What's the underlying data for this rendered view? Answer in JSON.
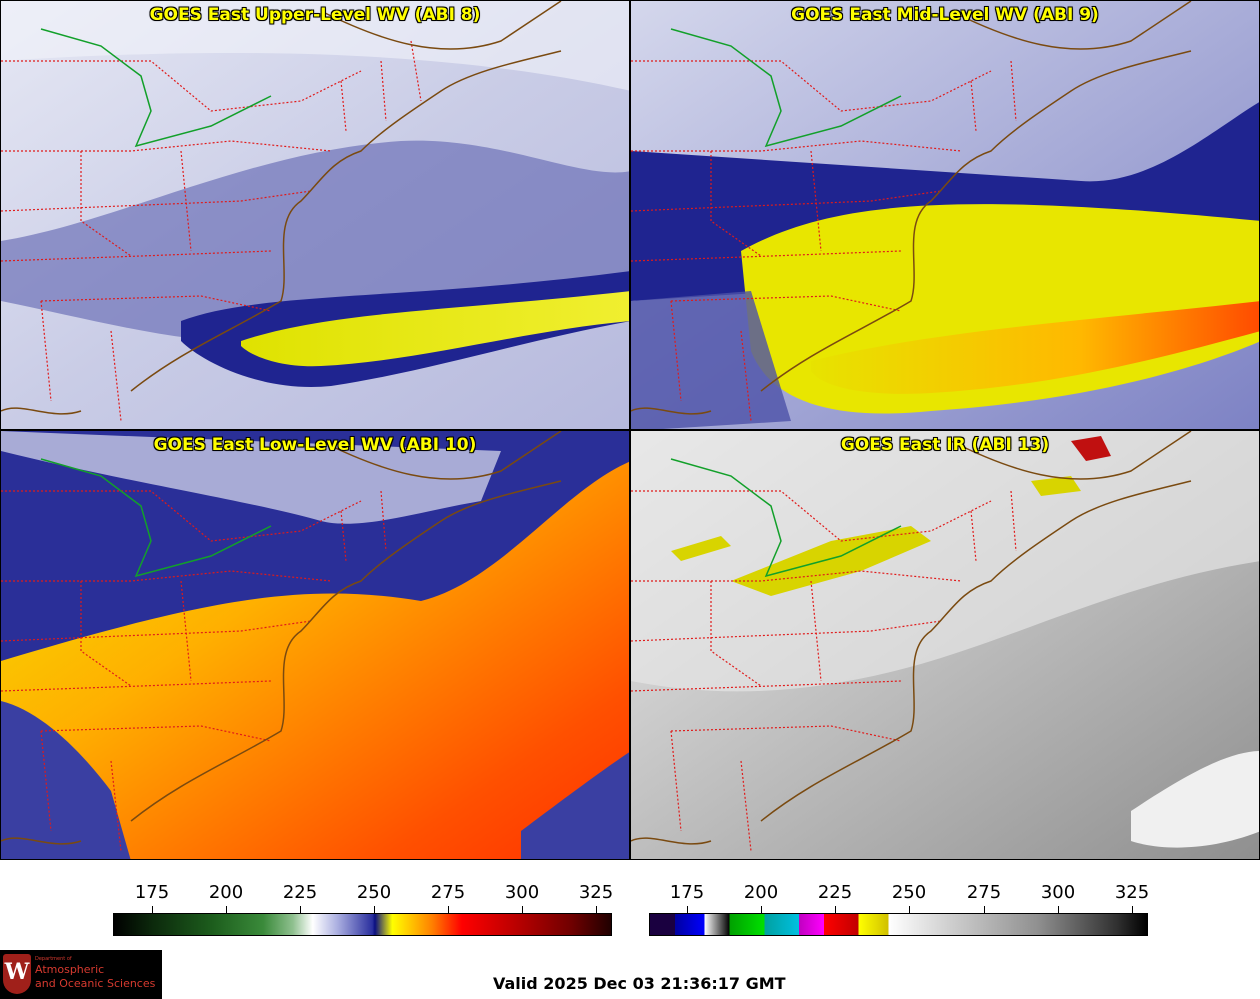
{
  "panels": [
    {
      "title": "GOES East Upper-Level WV (ABI 8)",
      "palette": "wv"
    },
    {
      "title": "GOES East Mid-Level WV (ABI 9)",
      "palette": "wv"
    },
    {
      "title": "GOES East Low-Level WV (ABI 10)",
      "palette": "wv"
    },
    {
      "title": "GOES East IR (ABI 13)",
      "palette": "ir"
    }
  ],
  "colorbars": {
    "wv": {
      "ticks": [
        "175",
        "200",
        "225",
        "250",
        "275",
        "300",
        "325"
      ]
    },
    "ir": {
      "ticks": [
        "175",
        "200",
        "225",
        "250",
        "275",
        "300",
        "325"
      ]
    }
  },
  "valid_time": "Valid 2025 Dec 03 21:36:17 GMT",
  "logo": {
    "department": "Department of",
    "line1": "Atmospheric",
    "line2": "and Oceanic Sciences",
    "letter": "W"
  }
}
